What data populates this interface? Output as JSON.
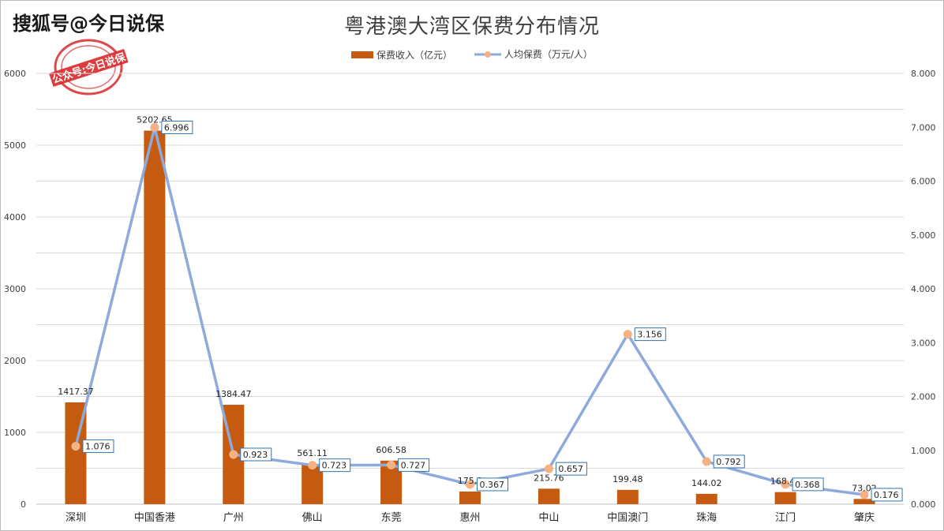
{
  "watermark": "搜狐号@今日说保",
  "stamp_text": "公众号:今日说保",
  "colors": {
    "bar": "#c55a11",
    "line": "#8eaadb",
    "marker": "#f4b183",
    "grid": "#d9d9d9",
    "text": "#404040"
  },
  "chart_data": {
    "type": "bar",
    "title": "粤港澳大湾区保费分布情况",
    "categories": [
      "深圳",
      "中国香港",
      "广州",
      "佛山",
      "东莞",
      "惠州",
      "中山",
      "中国澳门",
      "珠海",
      "江门",
      "肇庆"
    ],
    "series": [
      {
        "name": "保费收入（亿元）",
        "type": "bar",
        "axis": "left",
        "values": [
          1417.37,
          5202.65,
          1384.47,
          561.11,
          606.58,
          175.8,
          215.76,
          199.48,
          144.02,
          168.44,
          73.02
        ],
        "labels": [
          "1417.37",
          "5202.65",
          "1384.47",
          "561.11",
          "606.58",
          "175.8",
          "215.76",
          "199.48",
          "144.02",
          "168.44",
          "73.02"
        ]
      },
      {
        "name": "人均保费（万元/人）",
        "type": "line",
        "axis": "right",
        "values": [
          1.076,
          6.996,
          0.923,
          0.723,
          0.727,
          0.367,
          0.657,
          3.156,
          0.792,
          0.368,
          0.176
        ],
        "labels": [
          "1.076",
          "6.996",
          "0.923",
          "0.723",
          "0.727",
          "0.367",
          "0.657",
          "3.156",
          "0.792",
          "0.368",
          "0.176"
        ]
      }
    ],
    "ylim_left": [
      0,
      6000
    ],
    "yticks_left": [
      "0",
      "1000",
      "2000",
      "3000",
      "4000",
      "5000",
      "6000"
    ],
    "ylim_right": [
      0,
      8
    ],
    "yticks_right": [
      "0.000",
      "1.000",
      "2.000",
      "3.000",
      "4.000",
      "5.000",
      "6.000",
      "7.000",
      "8.000"
    ],
    "grid": true,
    "legend_position": "top"
  }
}
